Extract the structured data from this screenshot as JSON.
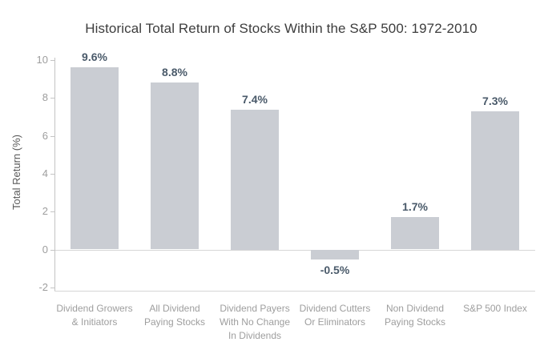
{
  "chart_data": {
    "type": "bar",
    "title": "Historical Total Return of Stocks Within the S&P 500: 1972-2010",
    "ylabel": "Total Return (%)",
    "xlabel": "",
    "ylim": [
      -2,
      10
    ],
    "yticks": [
      10,
      8,
      6,
      4,
      2,
      0,
      -2
    ],
    "grid": "off",
    "legend": "none",
    "categories": [
      "Dividend Growers\n& Initiators",
      "All Dividend\nPaying Stocks",
      "Dividend Payers\nWith No Change\nIn Dividends",
      "Dividend Cutters\nOr Eliminators",
      "Non Dividend\nPaying Stocks",
      "S&P 500 Index"
    ],
    "values": [
      9.6,
      8.8,
      7.4,
      -0.5,
      1.7,
      7.3
    ],
    "data_labels": [
      "9.6%",
      "8.8%",
      "7.4%",
      "-0.5%",
      "1.7%",
      "7.3%"
    ],
    "colors": {
      "bar_fill": "#CACDD3",
      "data_label": "#4A5A6A",
      "tick_label": "#9E9E9E",
      "category_label": "#9E9E9E",
      "title": "#3D3D3D",
      "y_axis_title": "#595959",
      "axis_line": "#C4C4C4",
      "baseline": "#D6D6D6"
    }
  }
}
